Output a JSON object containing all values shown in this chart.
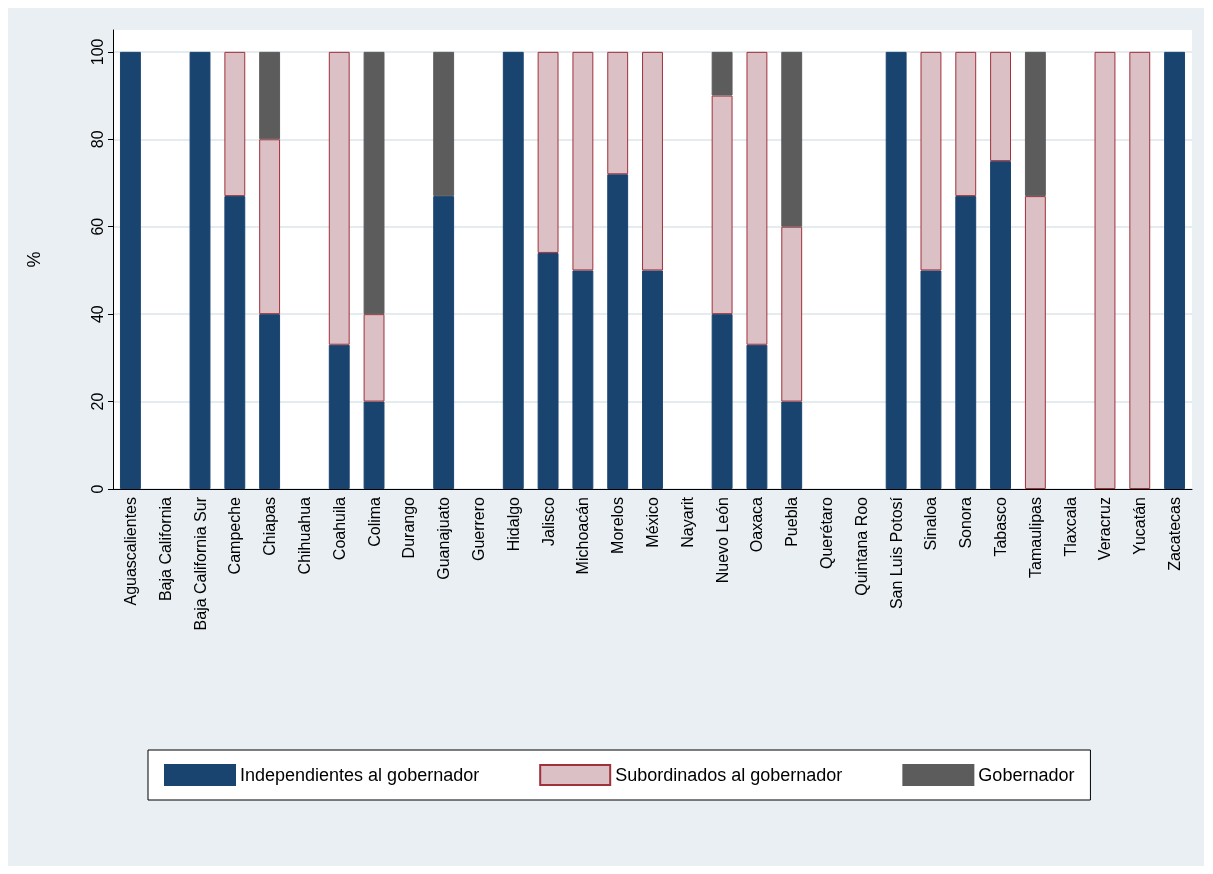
{
  "chart_data": {
    "type": "bar",
    "stacked": true,
    "ylabel": "%",
    "ylim": [
      0,
      105
    ],
    "yticks": [
      0,
      20,
      40,
      60,
      80,
      100
    ],
    "grid": "y",
    "legend": "bottom",
    "categories": [
      "Aguascalientes",
      "Baja California",
      "Baja California Sur",
      "Campeche",
      "Chiapas",
      "Chihuahua",
      "Coahuila",
      "Colima",
      "Durango",
      "Guanajuato",
      "Guerrero",
      "Hidalgo",
      "Jalisco",
      "Michoacán",
      "Morelos",
      "México",
      "Nayarit",
      "Nuevo León",
      "Oaxaca",
      "Puebla",
      "Querétaro",
      "Quintana Roo",
      "San Luis Potosí",
      "Sinaloa",
      "Sonora",
      "Tabasco",
      "Tamaulipas",
      "Tlaxcala",
      "Veracruz",
      "Yucatán",
      "Zacatecas"
    ],
    "series": [
      {
        "name": "Independientes al gobernador",
        "color": "#1a4470",
        "values": [
          100,
          null,
          100,
          67,
          40,
          null,
          33,
          20,
          null,
          67,
          null,
          100,
          54,
          50,
          72,
          50,
          null,
          40,
          33,
          20,
          null,
          null,
          100,
          50,
          67,
          75,
          0,
          null,
          0,
          0,
          100
        ]
      },
      {
        "name": "Subordinados al gobernador",
        "color": "#dbc0c5",
        "values": [
          0,
          null,
          0,
          33,
          40,
          null,
          67,
          20,
          null,
          0,
          null,
          0,
          46,
          50,
          28,
          50,
          null,
          50,
          67,
          40,
          null,
          null,
          0,
          50,
          33,
          25,
          67,
          null,
          100,
          100,
          0
        ]
      },
      {
        "name": "Gobernador",
        "color": "#5c5c5c",
        "values": [
          0,
          null,
          0,
          0,
          20,
          null,
          0,
          60,
          null,
          33,
          null,
          0,
          0,
          0,
          0,
          0,
          null,
          10,
          0,
          40,
          null,
          null,
          0,
          0,
          0,
          0,
          33,
          null,
          0,
          0,
          0
        ]
      }
    ]
  }
}
